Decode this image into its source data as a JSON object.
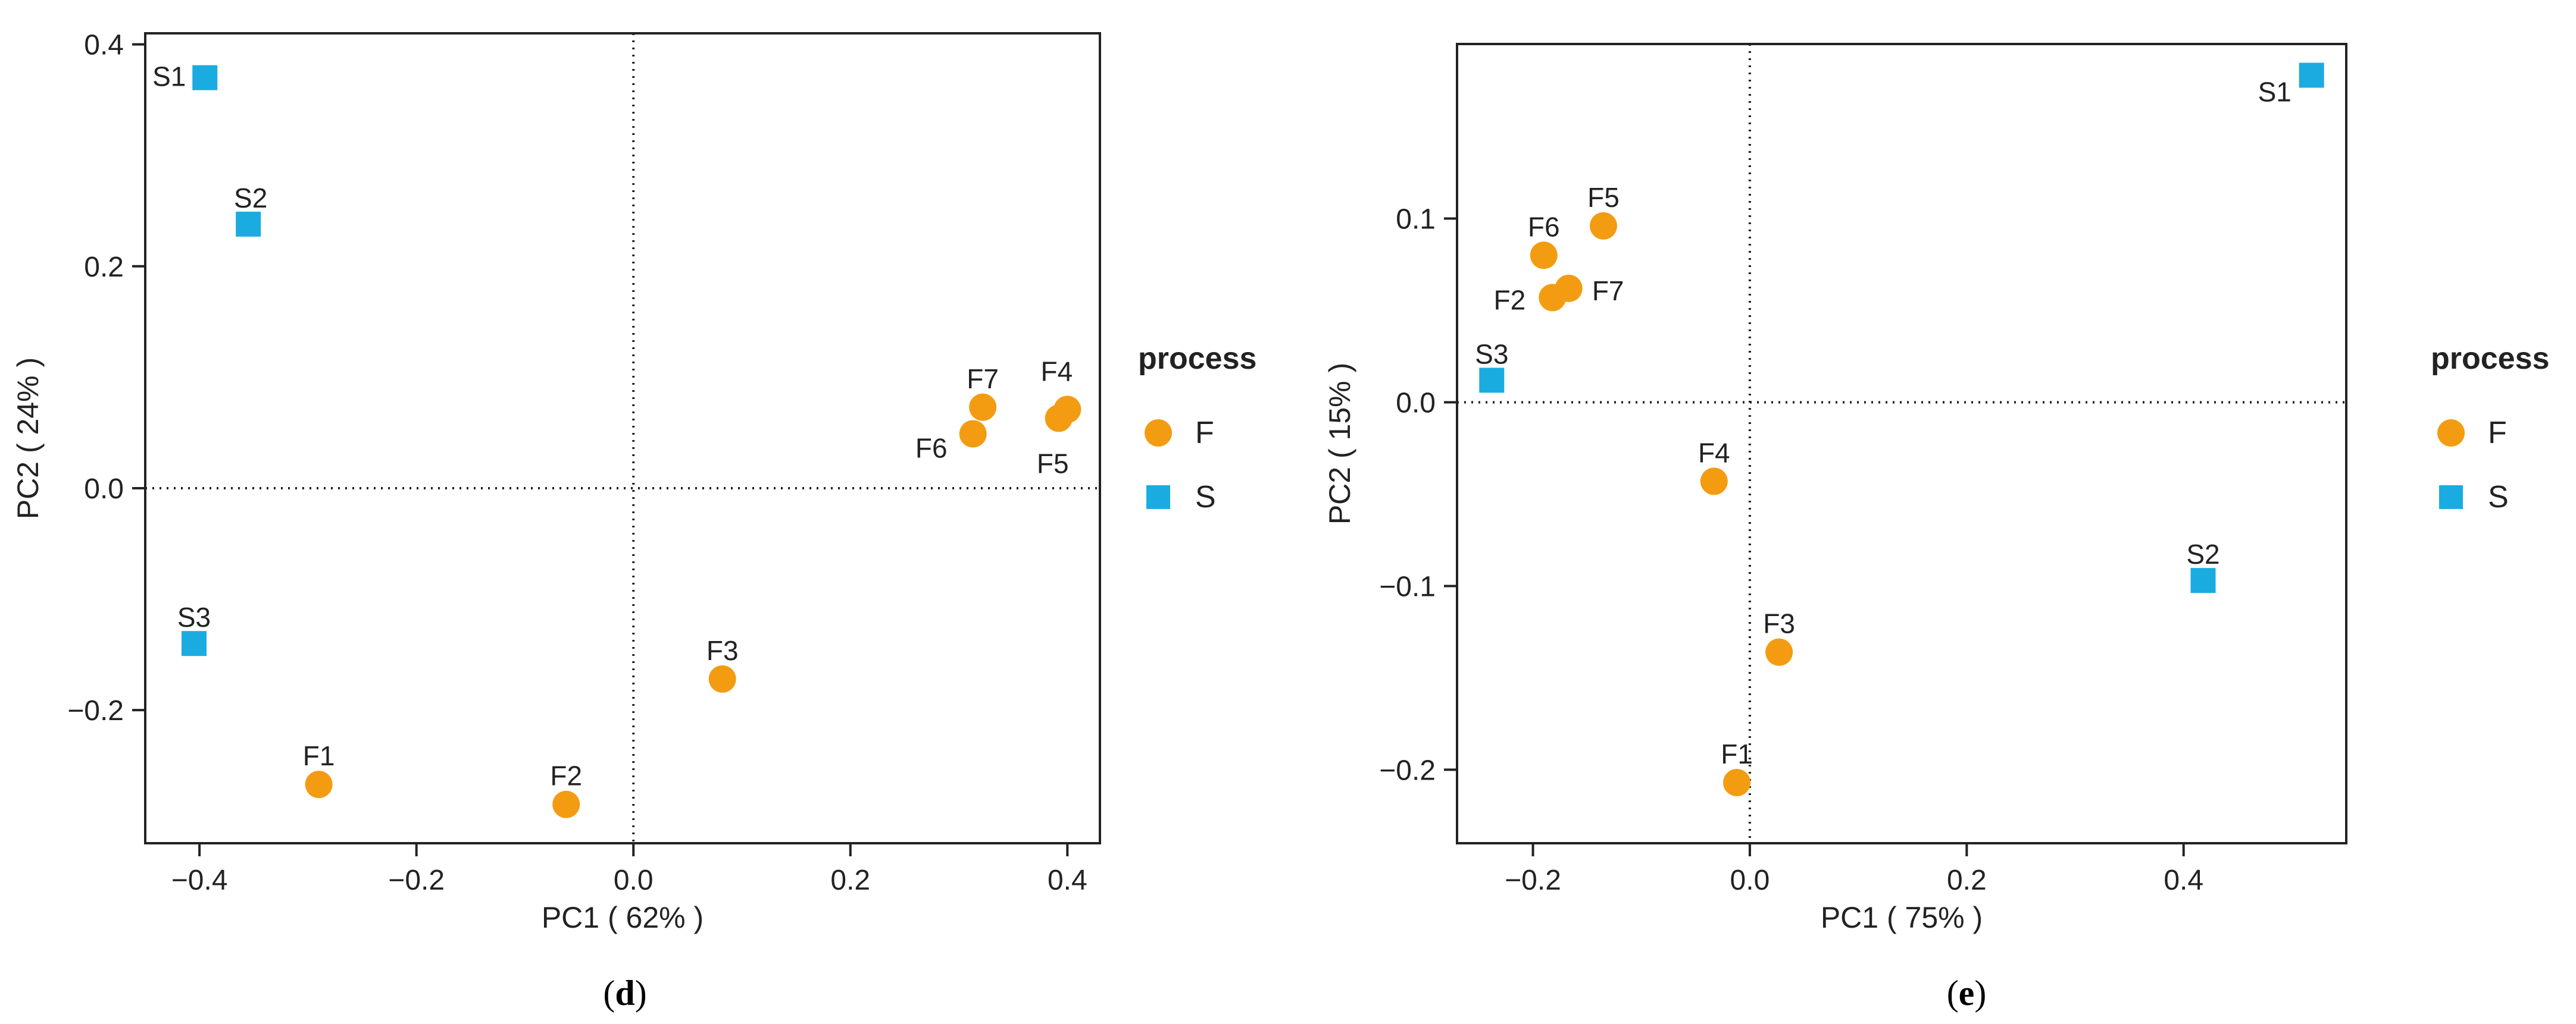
{
  "colors": {
    "F": "#F39C12",
    "S": "#1AACE0",
    "axis": "#222222"
  },
  "chart_data": [
    {
      "type": "scatter",
      "panel": "d",
      "caption_letter": "d",
      "xlabel": "PC1 ( 62% )",
      "ylabel": "PC2 ( 24% )",
      "xlim": [
        -0.45,
        0.43
      ],
      "ylim": [
        -0.32,
        0.41
      ],
      "xticks": [
        -0.4,
        -0.2,
        0.0,
        0.2,
        0.4
      ],
      "xtick_labels": [
        "−0.4",
        "−0.2",
        "0.0",
        "0.2",
        "0.4"
      ],
      "yticks": [
        -0.2,
        0.0,
        0.2,
        0.4
      ],
      "ytick_labels": [
        "−0.2",
        "0.0",
        "0.2",
        "0.4"
      ],
      "zero_lines": true,
      "legend": {
        "title": "process",
        "entries": [
          {
            "label": "F",
            "group": "F"
          },
          {
            "label": "S",
            "group": "S"
          }
        ]
      },
      "points": [
        {
          "label": "S1",
          "group": "S",
          "x": -0.395,
          "y": 0.37
        },
        {
          "label": "S2",
          "group": "S",
          "x": -0.355,
          "y": 0.238
        },
        {
          "label": "S3",
          "group": "S",
          "x": -0.405,
          "y": -0.14
        },
        {
          "label": "F1",
          "group": "F",
          "x": -0.29,
          "y": -0.267
        },
        {
          "label": "F2",
          "group": "F",
          "x": -0.062,
          "y": -0.285
        },
        {
          "label": "F3",
          "group": "F",
          "x": 0.082,
          "y": -0.172
        },
        {
          "label": "F4",
          "group": "F",
          "x": 0.4,
          "y": 0.071
        },
        {
          "label": "F5",
          "group": "F",
          "x": 0.392,
          "y": 0.063
        },
        {
          "label": "F6",
          "group": "F",
          "x": 0.313,
          "y": 0.049
        },
        {
          "label": "F7",
          "group": "F",
          "x": 0.322,
          "y": 0.073
        }
      ]
    },
    {
      "type": "scatter",
      "panel": "e",
      "caption_letter": "e",
      "xlabel": "PC1 ( 75% )",
      "ylabel": "PC2 ( 15% )",
      "xlim": [
        -0.27,
        0.55
      ],
      "ylim": [
        -0.24,
        0.195
      ],
      "xticks": [
        -0.2,
        0.0,
        0.2,
        0.4
      ],
      "xtick_labels": [
        "−0.2",
        "0.0",
        "0.2",
        "0.4"
      ],
      "yticks": [
        -0.2,
        -0.1,
        0.0,
        0.1
      ],
      "ytick_labels": [
        "−0.2",
        "−0.1",
        "0.0",
        "0.1"
      ],
      "zero_lines": true,
      "legend": {
        "title": "process",
        "entries": [
          {
            "label": "F",
            "group": "F"
          },
          {
            "label": "S",
            "group": "S"
          }
        ]
      },
      "points": [
        {
          "label": "S1",
          "group": "S",
          "x": 0.518,
          "y": 0.178
        },
        {
          "label": "S2",
          "group": "S",
          "x": 0.418,
          "y": -0.097
        },
        {
          "label": "S3",
          "group": "S",
          "x": -0.238,
          "y": 0.012
        },
        {
          "label": "F1",
          "group": "F",
          "x": -0.012,
          "y": -0.207
        },
        {
          "label": "F2",
          "group": "F",
          "x": -0.182,
          "y": 0.057
        },
        {
          "label": "F3",
          "group": "F",
          "x": 0.027,
          "y": -0.136
        },
        {
          "label": "F4",
          "group": "F",
          "x": -0.033,
          "y": -0.043
        },
        {
          "label": "F5",
          "group": "F",
          "x": -0.135,
          "y": 0.096
        },
        {
          "label": "F6",
          "group": "F",
          "x": -0.19,
          "y": 0.08
        },
        {
          "label": "F7",
          "group": "F",
          "x": -0.167,
          "y": 0.062
        }
      ]
    }
  ]
}
